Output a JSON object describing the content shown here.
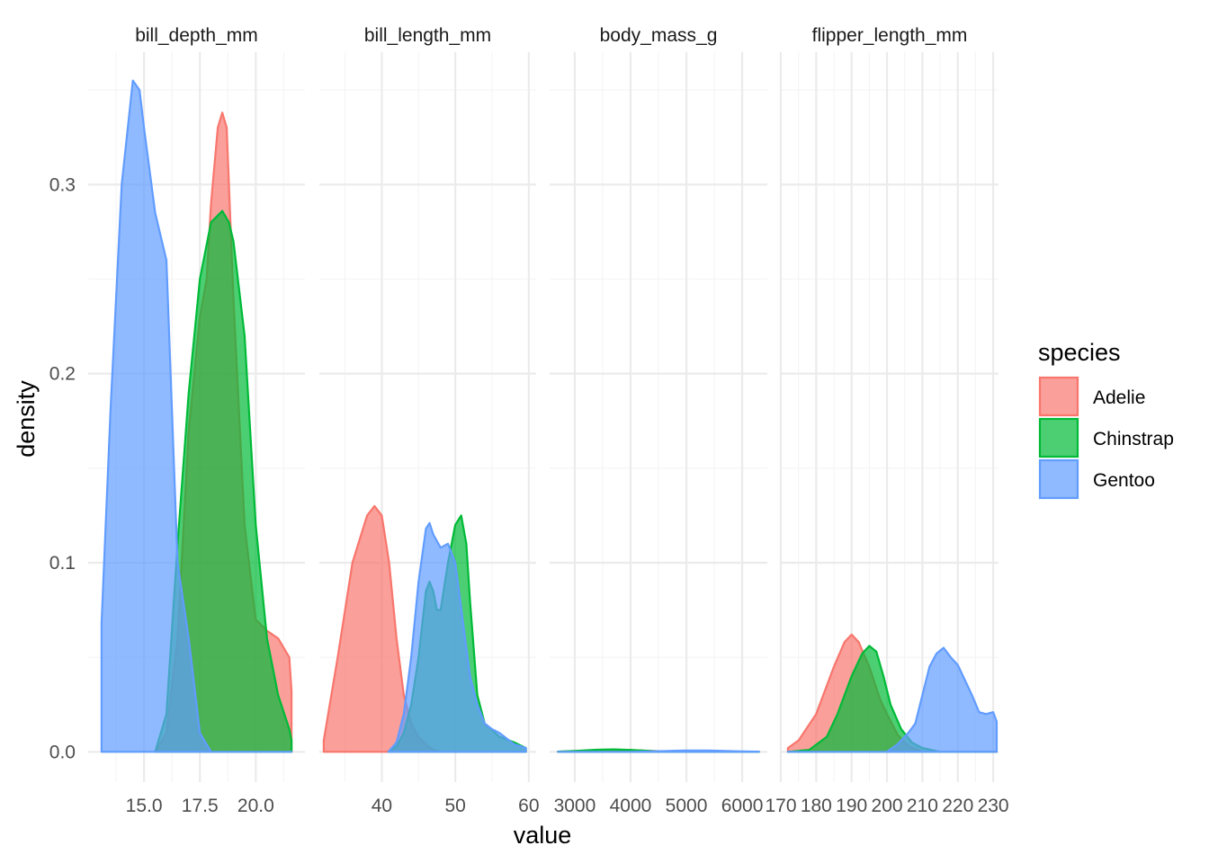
{
  "chart_data": {
    "type": "area",
    "subtype": "density-facets",
    "xlabel": "value",
    "ylabel": "density",
    "ylim": [
      -0.016,
      0.37
    ],
    "y_ticks": [
      0.0,
      0.1,
      0.2,
      0.3
    ],
    "y_tick_labels": [
      "0.0",
      "0.1",
      "0.2",
      "0.3"
    ],
    "grid": true,
    "fill_opacity": 0.7,
    "legend": {
      "title": "species",
      "position": "right",
      "entries": [
        {
          "name": "Adelie",
          "color": "#F8766D"
        },
        {
          "name": "Chinstrap",
          "color": "#00BA38"
        },
        {
          "name": "Gentoo",
          "color": "#619CFF"
        }
      ]
    },
    "facets": [
      {
        "label": "bill_depth_mm",
        "xlim": [
          12.5,
          22.2
        ],
        "x_ticks": [
          15.0,
          17.5,
          20.0
        ],
        "x_tick_labels": [
          "15.0",
          "17.5",
          "20.0"
        ],
        "series": [
          {
            "name": "Adelie",
            "x": [
              15.5,
              16.0,
              16.5,
              17.0,
              17.5,
              17.8,
              18.0,
              18.3,
              18.5,
              18.7,
              19.0,
              19.5,
              20.0,
              20.5,
              21.0,
              21.5,
              21.6
            ],
            "y": [
              0.0,
              0.01,
              0.06,
              0.17,
              0.23,
              0.25,
              0.29,
              0.33,
              0.338,
              0.33,
              0.24,
              0.12,
              0.07,
              0.064,
              0.06,
              0.05,
              0.032
            ]
          },
          {
            "name": "Chinstrap",
            "x": [
              15.5,
              16.0,
              16.5,
              17.0,
              17.5,
              18.0,
              18.5,
              18.8,
              19.0,
              19.5,
              20.0,
              20.5,
              21.0,
              21.5,
              21.6
            ],
            "y": [
              0.0,
              0.02,
              0.11,
              0.19,
              0.25,
              0.28,
              0.286,
              0.28,
              0.27,
              0.22,
              0.12,
              0.06,
              0.03,
              0.012,
              0.006
            ]
          },
          {
            "name": "Gentoo",
            "x": [
              13.1,
              13.5,
              14.0,
              14.5,
              14.8,
              15.0,
              15.5,
              16.0,
              16.5,
              17.0,
              17.5,
              18.0,
              18.5,
              19.0,
              21.6
            ],
            "y": [
              0.068,
              0.18,
              0.3,
              0.355,
              0.35,
              0.33,
              0.285,
              0.26,
              0.1,
              0.06,
              0.01,
              0.0,
              0.0,
              0.0,
              0.0
            ]
          }
        ]
      },
      {
        "label": "bill_length_mm",
        "xlim": [
          31.5,
          61.0
        ],
        "x_ticks": [
          40,
          50,
          60
        ],
        "x_tick_labels": [
          "40",
          "50",
          "60"
        ],
        "series": [
          {
            "name": "Adelie",
            "x": [
              32.1,
              34.0,
              36.0,
              38.0,
              39.0,
              40.0,
              41.0,
              42.0,
              43.0,
              44.0,
              45.0,
              46.0,
              47.0,
              48.0,
              59.6
            ],
            "y": [
              0.006,
              0.05,
              0.1,
              0.125,
              0.13,
              0.125,
              0.1,
              0.06,
              0.03,
              0.015,
              0.008,
              0.004,
              0.001,
              0.0,
              0.0
            ]
          },
          {
            "name": "Chinstrap",
            "x": [
              40.9,
              42.0,
              43.0,
              44.0,
              45.0,
              46.0,
              46.5,
              47.0,
              47.5,
              48.0,
              49.0,
              50.0,
              50.8,
              51.5,
              52.0,
              53.0,
              54.0,
              56.0,
              58.0,
              59.6
            ],
            "y": [
              0.0,
              0.003,
              0.01,
              0.025,
              0.05,
              0.085,
              0.09,
              0.085,
              0.075,
              0.075,
              0.1,
              0.12,
              0.125,
              0.11,
              0.08,
              0.03,
              0.015,
              0.008,
              0.005,
              0.002
            ]
          },
          {
            "name": "Gentoo",
            "x": [
              40.9,
              42.0,
              43.0,
              44.0,
              45.0,
              46.0,
              46.5,
              47.0,
              48.0,
              49.0,
              50.0,
              51.0,
              52.0,
              53.0,
              54.0,
              55.0,
              56.0,
              58.0,
              59.6
            ],
            "y": [
              0.0,
              0.005,
              0.02,
              0.05,
              0.09,
              0.118,
              0.121,
              0.115,
              0.108,
              0.11,
              0.1,
              0.07,
              0.04,
              0.025,
              0.015,
              0.012,
              0.01,
              0.004,
              0.002
            ]
          }
        ]
      },
      {
        "label": "body_mass_g",
        "xlim": [
          2550,
          6450
        ],
        "x_ticks": [
          3000,
          4000,
          5000,
          6000
        ],
        "x_tick_labels": [
          "3000",
          "4000",
          "5000",
          "6000"
        ],
        "series": [
          {
            "name": "Adelie",
            "x": [
              2700,
              3000,
              3400,
              3700,
              4000,
              4400,
              4800,
              6300
            ],
            "y": [
              0.0001,
              0.0004,
              0.0009,
              0.00105,
              0.0009,
              0.0005,
              0.0001,
              0.0
            ]
          },
          {
            "name": "Chinstrap",
            "x": [
              2700,
              3000,
              3400,
              3700,
              4000,
              4400,
              4800,
              6300
            ],
            "y": [
              0.0001,
              0.0005,
              0.0011,
              0.0013,
              0.001,
              0.0004,
              0.0001,
              0.0
            ]
          },
          {
            "name": "Gentoo",
            "x": [
              2700,
              4000,
              4400,
              4800,
              5000,
              5400,
              5700,
              6000,
              6300
            ],
            "y": [
              0.0,
              0.0,
              0.0002,
              0.0006,
              0.00075,
              0.0007,
              0.0005,
              0.0002,
              0.0001
            ]
          }
        ]
      },
      {
        "label": "flipper_length_mm",
        "xlim": [
          170,
          231.5
        ],
        "x_ticks": [
          170,
          180,
          190,
          200,
          210,
          220,
          230
        ],
        "x_tick_labels": [
          "170",
          "180",
          "190",
          "200",
          "210",
          "220",
          "230"
        ],
        "series": [
          {
            "name": "Adelie",
            "x": [
              172,
              175,
              180,
              185,
              188,
              190,
              192,
              195,
              198,
              200,
              203,
              206,
              210,
              231
            ],
            "y": [
              0.002,
              0.006,
              0.02,
              0.045,
              0.058,
              0.062,
              0.058,
              0.045,
              0.028,
              0.02,
              0.009,
              0.003,
              0.0,
              0.0
            ]
          },
          {
            "name": "Chinstrap",
            "x": [
              172,
              178,
              183,
              186,
              190,
              193,
              195,
              197,
              199,
              201,
              204,
              207,
              210,
              215,
              220,
              231
            ],
            "y": [
              0.0,
              0.001,
              0.008,
              0.02,
              0.04,
              0.052,
              0.056,
              0.053,
              0.04,
              0.025,
              0.012,
              0.005,
              0.002,
              0.0,
              0.0,
              0.0
            ]
          },
          {
            "name": "Gentoo",
            "x": [
              172,
              200,
              203,
              206,
              208,
              210,
              212,
              214,
              216,
              218,
              220,
              222,
              224,
              226,
              228,
              230,
              231
            ],
            "y": [
              0.0,
              0.0,
              0.004,
              0.01,
              0.015,
              0.03,
              0.045,
              0.052,
              0.055,
              0.05,
              0.046,
              0.038,
              0.03,
              0.021,
              0.02,
              0.021,
              0.016
            ]
          }
        ]
      }
    ]
  }
}
